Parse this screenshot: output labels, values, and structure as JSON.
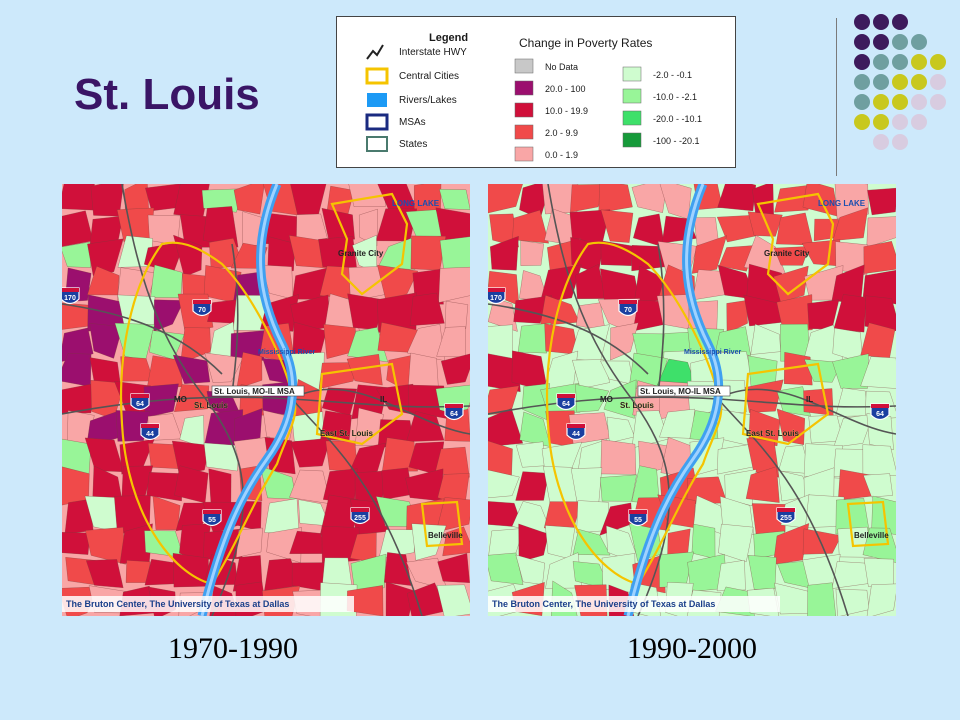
{
  "page": {
    "title": "St. Louis",
    "captions": [
      "1970-1990",
      "1990-2000"
    ]
  },
  "legend": {
    "heading": "Legend",
    "poverty_heading": "Change in Poverty Rates",
    "layers": [
      {
        "label": "Interstate HWY",
        "icon": "interstate-line-icon"
      },
      {
        "label": "Central Cities",
        "icon": "central-cities-swatch"
      },
      {
        "label": "Rivers/Lakes",
        "icon": "rivers-swatch"
      },
      {
        "label": "MSAs",
        "icon": "msa-swatch"
      },
      {
        "label": "States",
        "icon": "states-swatch"
      }
    ],
    "increase_classes": [
      {
        "label": "No Data",
        "color": "#c8c8c8"
      },
      {
        "label": "20.0 -  100",
        "color": "#9b0f6e"
      },
      {
        "label": "10.0 -  19.9",
        "color": "#d0103a"
      },
      {
        "label": "2.0 -    9.9",
        "color": "#f04a4a"
      },
      {
        "label": "0.0 -    1.9",
        "color": "#f9a6a6"
      }
    ],
    "decrease_classes": [
      {
        "label": "-2.0  -  -0.1",
        "color": "#cffccf"
      },
      {
        "label": "-10.0 -  -2.1",
        "color": "#98f598"
      },
      {
        "label": "-20.0 -  -10.1",
        "color": "#3ee06a"
      },
      {
        "label": "-100 -  -20.1",
        "color": "#169a3a"
      }
    ]
  },
  "maps": [
    {
      "period": "1970-1990",
      "credit": "The Bruton Center, The University of Texas at Dallas",
      "place_labels": [
        "LONG LAKE",
        "Granite City",
        "Mississippi River",
        "St. Louis, MO-IL MSA",
        "St. Louis",
        "MO",
        "IL",
        "East St. Louis",
        "Belleville"
      ],
      "shields": [
        "170",
        "70",
        "64",
        "44",
        "55",
        "255",
        "64"
      ]
    },
    {
      "period": "1990-2000",
      "credit": "The Bruton Center, The University of Texas at Dallas",
      "place_labels": [
        "LONG LAKE",
        "Granite City",
        "Mississippi River",
        "St. Louis, MO-IL MSA",
        "St. Louis",
        "MO",
        "IL",
        "East St. Louis",
        "Belleville"
      ],
      "shields": [
        "170",
        "70",
        "64",
        "44",
        "55",
        "255",
        "64"
      ]
    }
  ],
  "colors": {
    "background": "#cde9fb",
    "title": "#3a1566",
    "river": "#3fa0f0",
    "city_boundary": "#f5c400",
    "dot_purple": "#3d1a5c",
    "dot_teal": "#6f9fa0",
    "dot_olive": "#c8c81e",
    "dot_lilac": "#d8cce0"
  }
}
